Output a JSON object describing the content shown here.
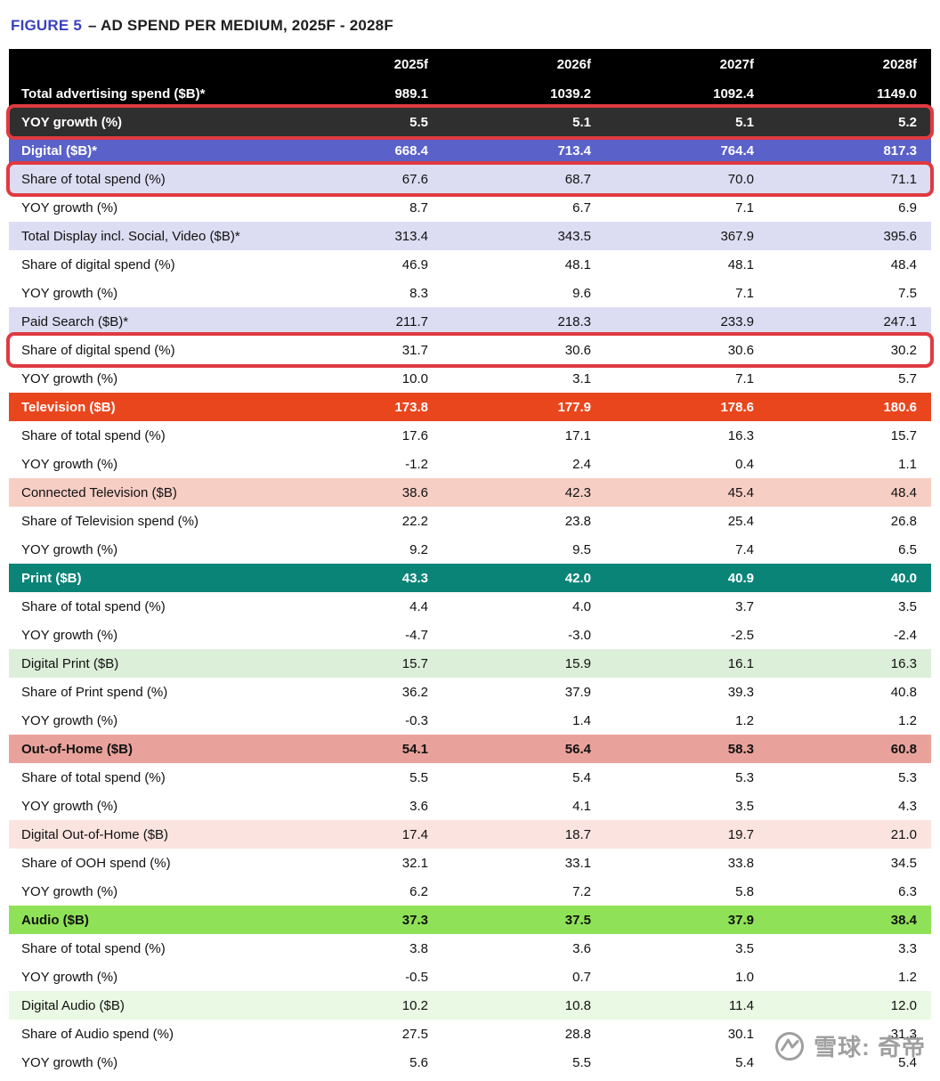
{
  "title": {
    "figure_label": "FIGURE 5",
    "figure_rest": "– AD SPEND PER MEDIUM, 2025F - 2028F"
  },
  "watermark": {
    "text": "雪球: 奇帝"
  },
  "colors": {
    "figure_label": "#3A41BE",
    "highlight_border": "#E03A41",
    "black_row": "#000000",
    "dark_row": "#2F2F2F",
    "digital_row": "#5A61C9",
    "lavender_row": "#DCDDF2",
    "television_row": "#E9461E",
    "connected_tv_row": "#F6CEC4",
    "print_row": "#0B8478",
    "digital_print_row": "#DCEFD9",
    "ooh_row": "#E9A29B",
    "digital_ooh_row": "#FBE4E0",
    "audio_row": "#8FE257",
    "digital_audio_row": "#E9F9E3"
  },
  "chart_data": {
    "type": "table",
    "title": "FIGURE 5 – AD SPEND PER MEDIUM, 2025F - 2028F",
    "columns": [
      "2025f",
      "2026f",
      "2027f",
      "2028f"
    ],
    "rows": [
      {
        "label": "Total advertising spend ($B)*",
        "values": [
          "989.1",
          "1039.2",
          "1092.4",
          "1149.0"
        ],
        "style": "black",
        "highlight": false
      },
      {
        "label": "YOY growth (%)",
        "values": [
          "5.5",
          "5.1",
          "5.1",
          "5.2"
        ],
        "style": "dark",
        "highlight": true
      },
      {
        "label": "Digital ($B)*",
        "values": [
          "668.4",
          "713.4",
          "764.4",
          "817.3"
        ],
        "style": "digital",
        "highlight": false
      },
      {
        "label": "Share of total spend (%)",
        "values": [
          "67.6",
          "68.7",
          "70.0",
          "71.1"
        ],
        "style": "lavender",
        "highlight": true
      },
      {
        "label": "YOY growth (%)",
        "values": [
          "8.7",
          "6.7",
          "7.1",
          "6.9"
        ],
        "style": "white",
        "highlight": false
      },
      {
        "label": "Total Display incl. Social, Video ($B)*",
        "values": [
          "313.4",
          "343.5",
          "367.9",
          "395.6"
        ],
        "style": "lavender",
        "highlight": false
      },
      {
        "label": "Share of digital spend (%)",
        "values": [
          "46.9",
          "48.1",
          "48.1",
          "48.4"
        ],
        "style": "white",
        "highlight": false
      },
      {
        "label": "YOY growth (%)",
        "values": [
          "8.3",
          "9.6",
          "7.1",
          "7.5"
        ],
        "style": "white",
        "highlight": false
      },
      {
        "label": "Paid Search ($B)*",
        "values": [
          "211.7",
          "218.3",
          "233.9",
          "247.1"
        ],
        "style": "lavender",
        "highlight": false
      },
      {
        "label": "Share of digital spend (%)",
        "values": [
          "31.7",
          "30.6",
          "30.6",
          "30.2"
        ],
        "style": "white",
        "highlight": true
      },
      {
        "label": "YOY growth (%)",
        "values": [
          "10.0",
          "3.1",
          "7.1",
          "5.7"
        ],
        "style": "white",
        "highlight": false
      },
      {
        "label": "Television ($B)",
        "values": [
          "173.8",
          "177.9",
          "178.6",
          "180.6"
        ],
        "style": "television",
        "highlight": false
      },
      {
        "label": "Share of total spend (%)",
        "values": [
          "17.6",
          "17.1",
          "16.3",
          "15.7"
        ],
        "style": "white",
        "highlight": false
      },
      {
        "label": "YOY growth (%)",
        "values": [
          "-1.2",
          "2.4",
          "0.4",
          "1.1"
        ],
        "style": "white",
        "highlight": false
      },
      {
        "label": "Connected Television ($B)",
        "values": [
          "38.6",
          "42.3",
          "45.4",
          "48.4"
        ],
        "style": "pink",
        "highlight": false
      },
      {
        "label": "Share of Television spend (%)",
        "values": [
          "22.2",
          "23.8",
          "25.4",
          "26.8"
        ],
        "style": "white",
        "highlight": false
      },
      {
        "label": "YOY growth (%)",
        "values": [
          "9.2",
          "9.5",
          "7.4",
          "6.5"
        ],
        "style": "white",
        "highlight": false
      },
      {
        "label": "Print ($B)",
        "values": [
          "43.3",
          "42.0",
          "40.9",
          "40.0"
        ],
        "style": "print",
        "highlight": false
      },
      {
        "label": "Share of total spend (%)",
        "values": [
          "4.4",
          "4.0",
          "3.7",
          "3.5"
        ],
        "style": "white",
        "highlight": false
      },
      {
        "label": "YOY growth (%)",
        "values": [
          "-4.7",
          "-3.0",
          "-2.5",
          "-2.4"
        ],
        "style": "white",
        "highlight": false
      },
      {
        "label": "Digital Print ($B)",
        "values": [
          "15.7",
          "15.9",
          "16.1",
          "16.3"
        ],
        "style": "lightgreen",
        "highlight": false
      },
      {
        "label": "Share of Print spend (%)",
        "values": [
          "36.2",
          "37.9",
          "39.3",
          "40.8"
        ],
        "style": "white",
        "highlight": false
      },
      {
        "label": "YOY growth (%)",
        "values": [
          "-0.3",
          "1.4",
          "1.2",
          "1.2"
        ],
        "style": "white",
        "highlight": false
      },
      {
        "label": "Out-of-Home ($B)",
        "values": [
          "54.1",
          "56.4",
          "58.3",
          "60.8"
        ],
        "style": "ooh",
        "highlight": false
      },
      {
        "label": "Share of total spend (%)",
        "values": [
          "5.5",
          "5.4",
          "5.3",
          "5.3"
        ],
        "style": "white",
        "highlight": false
      },
      {
        "label": "YOY growth (%)",
        "values": [
          "3.6",
          "4.1",
          "3.5",
          "4.3"
        ],
        "style": "white",
        "highlight": false
      },
      {
        "label": "Digital Out-of-Home ($B)",
        "values": [
          "17.4",
          "18.7",
          "19.7",
          "21.0"
        ],
        "style": "lightpink",
        "highlight": false
      },
      {
        "label": "Share of OOH spend (%)",
        "values": [
          "32.1",
          "33.1",
          "33.8",
          "34.5"
        ],
        "style": "white",
        "highlight": false
      },
      {
        "label": "YOY growth (%)",
        "values": [
          "6.2",
          "7.2",
          "5.8",
          "6.3"
        ],
        "style": "white",
        "highlight": false
      },
      {
        "label": "Audio ($B)",
        "values": [
          "37.3",
          "37.5",
          "37.9",
          "38.4"
        ],
        "style": "audio",
        "highlight": false
      },
      {
        "label": "Share of total spend (%)",
        "values": [
          "3.8",
          "3.6",
          "3.5",
          "3.3"
        ],
        "style": "white",
        "highlight": false
      },
      {
        "label": "YOY growth (%)",
        "values": [
          "-0.5",
          "0.7",
          "1.0",
          "1.2"
        ],
        "style": "white",
        "highlight": false
      },
      {
        "label": "Digital Audio ($B)",
        "values": [
          "10.2",
          "10.8",
          "11.4",
          "12.0"
        ],
        "style": "palegreen",
        "highlight": false
      },
      {
        "label": "Share of Audio spend (%)",
        "values": [
          "27.5",
          "28.8",
          "30.1",
          "31.3"
        ],
        "style": "white",
        "highlight": false
      },
      {
        "label": "YOY growth (%)",
        "values": [
          "5.6",
          "5.5",
          "5.4",
          "5.4"
        ],
        "style": "white",
        "highlight": false
      }
    ]
  }
}
